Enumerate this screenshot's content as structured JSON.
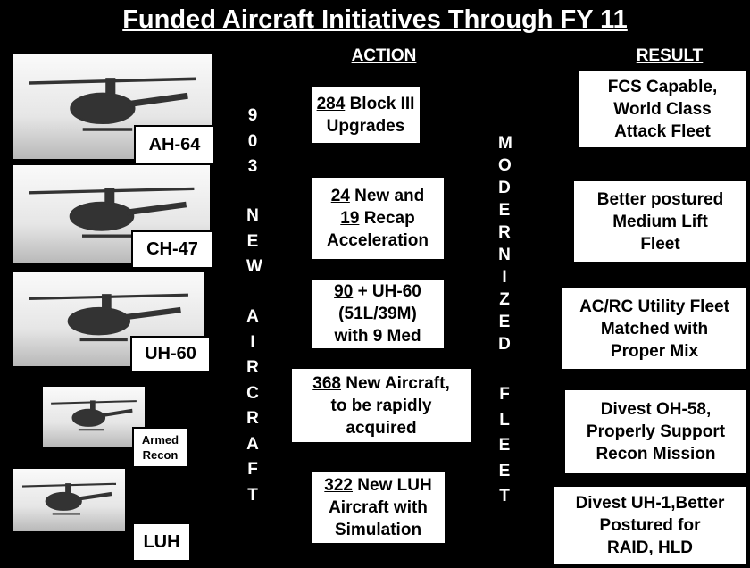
{
  "title": "Funded Aircraft Initiatives Through FY 11",
  "action_header": "ACTION",
  "result_header": "RESULT",
  "aircraft": [
    "AH-64",
    "CH-47",
    "UH-60",
    "Armed Recon",
    "LUH"
  ],
  "left_vertical": [
    "903",
    "NEW",
    "AIRCRAFT"
  ],
  "right_vertical": [
    "MODERNIZED",
    "FLEET"
  ],
  "actions": [
    [
      {
        "u": "284",
        "t": "Block III"
      },
      "Upgrades"
    ],
    [
      {
        "u": "24",
        "t": "New and"
      },
      {
        "u": "19",
        "t": "Recap"
      },
      "Acceleration"
    ],
    [
      {
        "u": "90",
        "t": "+ UH-60"
      },
      "(51L/39M)",
      "with 9 Med"
    ],
    [
      {
        "u": "368",
        "t": "New Aircraft,"
      },
      "to be rapidly",
      "acquired"
    ],
    [
      {
        "u": "322",
        "t": "New LUH"
      },
      "Aircraft with",
      "Simulation"
    ]
  ],
  "results": [
    [
      "FCS Capable,",
      "World Class",
      "Attack Fleet"
    ],
    [
      "Better postured",
      "Medium Lift",
      "Fleet"
    ],
    [
      "AC/RC Utility Fleet",
      "Matched with",
      "Proper Mix"
    ],
    [
      "Divest OH-58,",
      "Properly Support",
      "Recon Mission"
    ],
    [
      "Divest UH-1,Better",
      "Postured for",
      "RAID, HLD"
    ]
  ]
}
